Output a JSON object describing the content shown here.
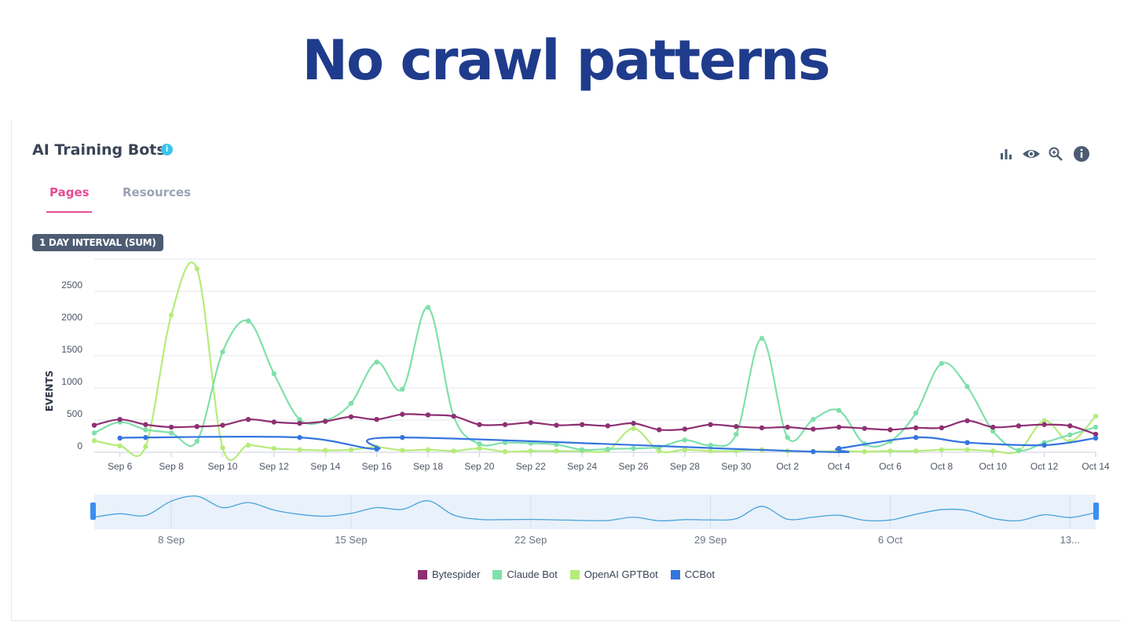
{
  "slide": {
    "title": "No crawl patterns"
  },
  "card": {
    "title": "AI Training Bots",
    "info_glyph": "i",
    "toolbar_icons": [
      "bar-chart-icon",
      "eye-icon",
      "zoom-icon",
      "info-icon"
    ],
    "tabs": [
      {
        "label": "Pages",
        "active": true
      },
      {
        "label": "Resources",
        "active": false
      }
    ],
    "interval_badge": "1 DAY INTERVAL (SUM)"
  },
  "chart_data": {
    "type": "line",
    "xlabel": "",
    "ylabel": "EVENTS",
    "ylim": [
      0,
      3000
    ],
    "yticks": [
      0,
      500,
      1000,
      1500,
      2000,
      2500
    ],
    "x_start": "Sep 5",
    "x": [
      "Sep 5",
      "Sep 6",
      "Sep 7",
      "Sep 8",
      "Sep 9",
      "Sep 10",
      "Sep 11",
      "Sep 12",
      "Sep 13",
      "Sep 14",
      "Sep 15",
      "Sep 16",
      "Sep 17",
      "Sep 18",
      "Sep 19",
      "Sep 20",
      "Sep 21",
      "Sep 22",
      "Sep 23",
      "Sep 24",
      "Sep 25",
      "Sep 26",
      "Sep 27",
      "Sep 28",
      "Sep 29",
      "Sep 30",
      "Oct 1",
      "Oct 2",
      "Oct 3",
      "Oct 4",
      "Oct 5",
      "Oct 6",
      "Oct 7",
      "Oct 8",
      "Oct 9",
      "Oct 10",
      "Oct 11",
      "Oct 12",
      "Oct 13",
      "Oct 14"
    ],
    "xtick_labels": [
      "Sep 6",
      "Sep 8",
      "Sep 10",
      "Sep 12",
      "Sep 14",
      "Sep 16",
      "Sep 18",
      "Sep 20",
      "Sep 22",
      "Sep 24",
      "Sep 26",
      "Sep 28",
      "Sep 30",
      "Oct 2",
      "Oct 4",
      "Oct 6",
      "Oct 8",
      "Oct 10",
      "Oct 12",
      "Oct 14"
    ],
    "series": [
      {
        "name": "Bytespider",
        "color": "#8e3073",
        "values": [
          420,
          510,
          430,
          390,
          400,
          420,
          510,
          470,
          450,
          480,
          550,
          510,
          590,
          580,
          560,
          430,
          430,
          460,
          420,
          430,
          410,
          450,
          350,
          360,
          430,
          400,
          380,
          390,
          360,
          390,
          370,
          350,
          380,
          380,
          490,
          390,
          410,
          430,
          410,
          280
        ]
      },
      {
        "name": "Claude Bot",
        "color": "#7fe0aa",
        "values": [
          300,
          470,
          350,
          300,
          170,
          1560,
          2040,
          1220,
          510,
          490,
          760,
          1400,
          980,
          2250,
          560,
          130,
          150,
          140,
          120,
          40,
          50,
          60,
          80,
          190,
          110,
          280,
          1770,
          230,
          510,
          650,
          130,
          170,
          610,
          1380,
          1020,
          330,
          30,
          150,
          270,
          390
        ]
      },
      {
        "name": "OpenAI GPTBot",
        "color": "#b6ec7b",
        "values": [
          180,
          100,
          90,
          2130,
          2850,
          70,
          110,
          60,
          40,
          30,
          40,
          80,
          30,
          40,
          20,
          60,
          10,
          20,
          20,
          20,
          30,
          370,
          20,
          40,
          20,
          20,
          40,
          20,
          10,
          20,
          10,
          20,
          20,
          40,
          40,
          20,
          20,
          490,
          170,
          560
        ]
      },
      {
        "name": "CCBot",
        "color": "#3575df",
        "values": [
          null,
          220,
          230,
          null,
          null,
          null,
          null,
          null,
          230,
          null,
          null,
          50,
          230,
          null,
          null,
          null,
          null,
          null,
          null,
          null,
          null,
          null,
          null,
          null,
          null,
          null,
          null,
          null,
          10,
          60,
          null,
          null,
          230,
          null,
          150,
          null,
          null,
          110,
          null,
          220
        ]
      }
    ],
    "navigator": {
      "labels": [
        "8 Sep",
        "15 Sep",
        "22 Sep",
        "29 Sep",
        "6 Oct",
        "13..."
      ]
    },
    "legend_position": "bottom-center"
  }
}
